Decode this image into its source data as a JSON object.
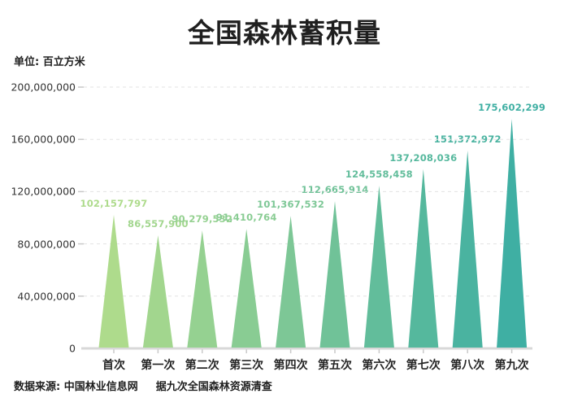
{
  "title": "全国森林蓄积量",
  "unit_label": "单位: 百立方米",
  "source": {
    "prefix": "数据来源: 中国林业信息网",
    "note": "据九次全国森林资源清查"
  },
  "chart_data": {
    "type": "bar",
    "variant": "triangle-spike",
    "title": "全国森林蓄积量",
    "unit": "百立方米",
    "categories": [
      "首次",
      "第一次",
      "第二次",
      "第三次",
      "第四次",
      "第五次",
      "第六次",
      "第七次",
      "第八次",
      "第九次"
    ],
    "values": [
      102157797,
      86557900,
      90279532,
      91410764,
      101367532,
      112665914,
      124558458,
      137208036,
      151372972,
      175602299
    ],
    "value_labels": [
      "102,157,797",
      "86,557,900",
      "90,279,532",
      "91,410,764",
      "101,367,532",
      "112,665,914",
      "124,558,458",
      "137,208,036",
      "151,372,972",
      "175,602,299"
    ],
    "colors": [
      "#aedb8c",
      "#a2d68e",
      "#95d191",
      "#89cc93",
      "#7dc796",
      "#70c298",
      "#62bd9b",
      "#55b89d",
      "#4ab3a0",
      "#3fafa3"
    ],
    "xlabel": "",
    "ylabel": "",
    "ylim": [
      0,
      200000000
    ],
    "yticks": [
      0,
      40000000,
      80000000,
      120000000,
      160000000,
      200000000
    ],
    "ytick_labels": [
      "0",
      "40,000,000",
      "80,000,000",
      "120,000,000",
      "160,000,000",
      "200,000,000"
    ],
    "grid": "horizontal-dashed",
    "legend_position": "none",
    "grid_color": "#e3e3e3",
    "baseline_color": "#d8d8d8",
    "tick_color": "#c9c9c9"
  }
}
